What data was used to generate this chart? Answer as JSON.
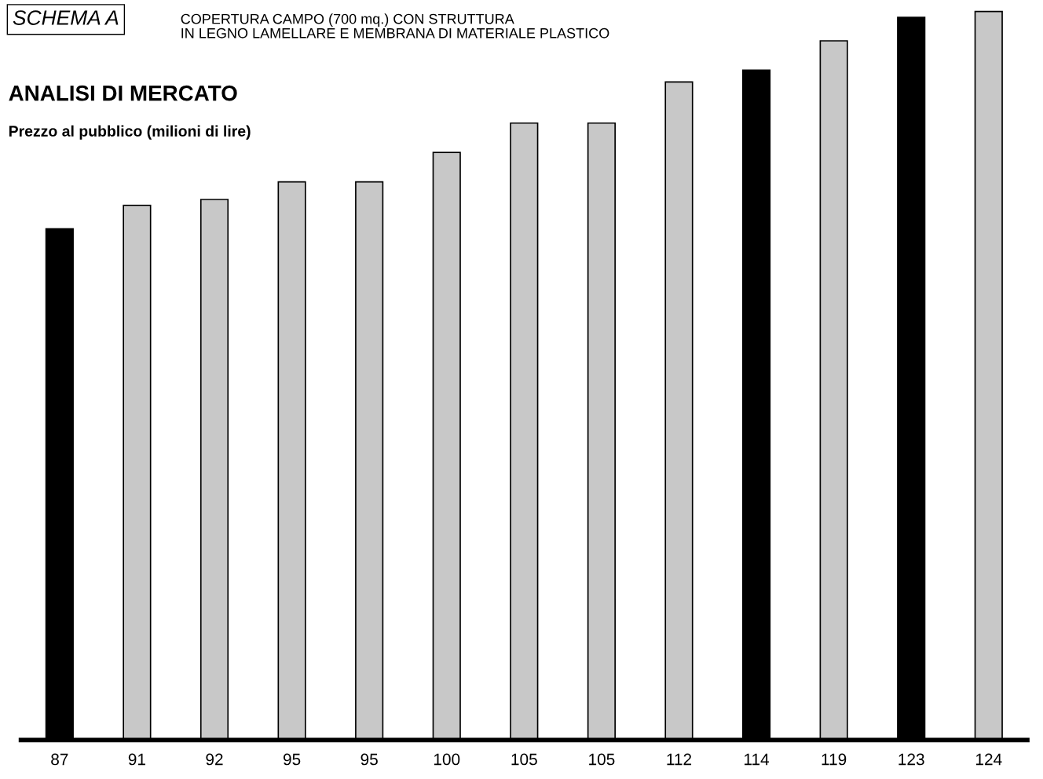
{
  "chart_data": {
    "type": "bar",
    "title": "ANALISI DI MERCATO",
    "subtitle": "Prezzo al pubblico (milioni di lire)",
    "annotations": [
      "SCHEMA A",
      "COPERTURA CAMPO (700 mq.) CON STRUTTURA\nIN LEGNO LAMELLARE E MEMBRANA DI MATERIALE PLASTICO"
    ],
    "categories": [
      null,
      null,
      null,
      null,
      null,
      null,
      null,
      null,
      null,
      null,
      null,
      null,
      null
    ],
    "values": [
      87,
      91,
      92,
      95,
      95,
      100,
      105,
      105,
      112,
      114,
      119,
      123,
      124
    ],
    "colors": [
      "#000000",
      "#c8c8c8",
      "#c8c8c8",
      "#c8c8c8",
      "#c8c8c8",
      "#c8c8c8",
      "#c8c8c8",
      "#c8c8c8",
      "#c8c8c8",
      "#000000",
      "#c8c8c8",
      "#000000",
      "#c8c8c8"
    ],
    "data_labels": true
  }
}
